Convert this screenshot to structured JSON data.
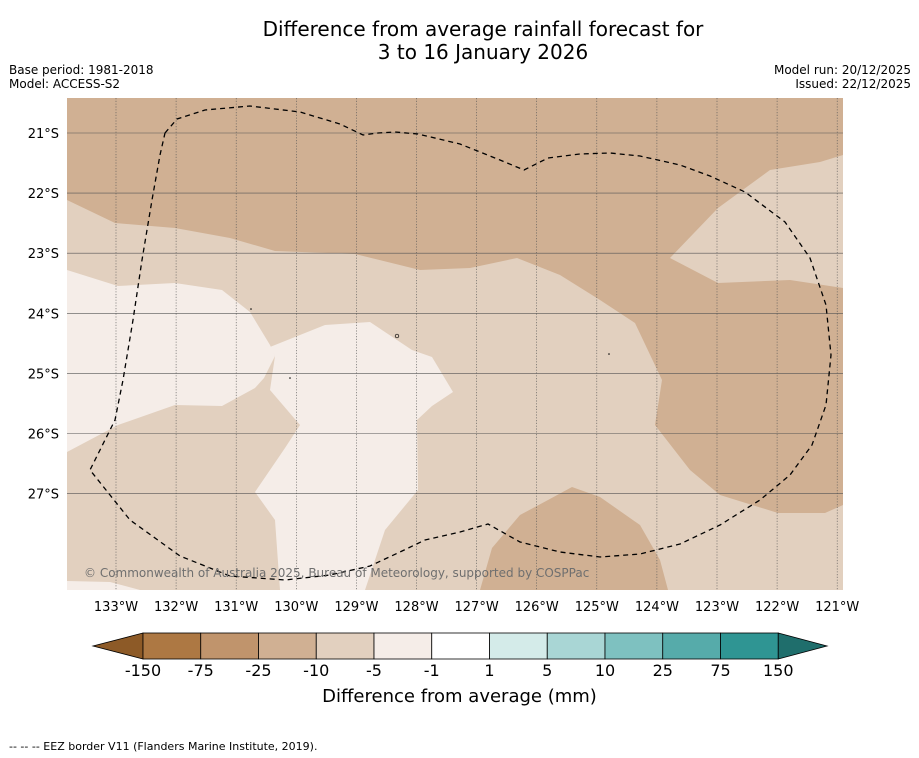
{
  "title_line1": "Difference from average rainfall forecast for",
  "title_line2": "3 to 16 January 2026",
  "base_period": "Base period: 1981-2018",
  "model": "Model: ACCESS-S2",
  "model_run": "Model run: 20/12/2025",
  "issued": "Issued: 22/12/2025",
  "map": {
    "lat_labels": [
      "21°S",
      "22°S",
      "23°S",
      "24°S",
      "25°S",
      "26°S",
      "27°S"
    ],
    "lon_labels": [
      "133°W",
      "132°W",
      "131°W",
      "130°W",
      "129°W",
      "128°W",
      "127°W",
      "126°W",
      "125°W",
      "124°W",
      "123°W",
      "122°W",
      "121°W"
    ],
    "copyright": "© Commonwealth of Australia 2025, Bureau of Meteorology, supported by COSPPac",
    "colors": {
      "band_minus25_to_minus10": "#d0b093",
      "band_minus10_to_minus5": "#e2d0bf",
      "band_minus5_to_minus1": "#f5ede8",
      "grid": "#555555",
      "eez_line": "#000000"
    }
  },
  "colorbar": {
    "ticks": [
      "-150",
      "-75",
      "-25",
      "-10",
      "-5",
      "-1",
      "1",
      "5",
      "10",
      "25",
      "75",
      "150"
    ],
    "colors": [
      "#8d5a27",
      "#ad7843",
      "#c0946c",
      "#d0b093",
      "#e2d0bf",
      "#f5ede8",
      "#ffffff",
      "#d4ebe9",
      "#a9d6d5",
      "#7ec1c0",
      "#56abaa",
      "#2f9593",
      "#1f6e6c"
    ],
    "label": "Difference from average (mm)"
  },
  "footer": "-- -- -- EEZ border V11 (Flanders Marine Institute, 2019)."
}
